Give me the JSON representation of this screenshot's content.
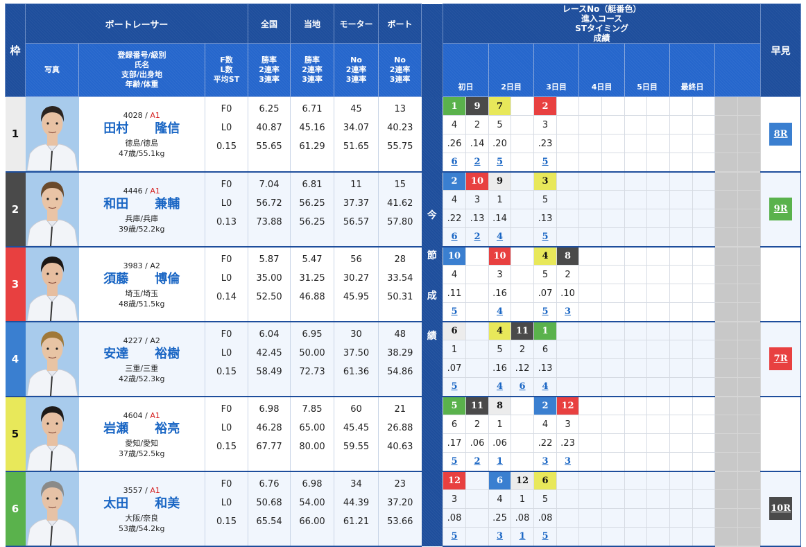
{
  "header": {
    "waku": "枠",
    "racer_group": "ボートレーサー",
    "photo": "写真",
    "info_lines": [
      "登録番号/級別",
      "氏名",
      "支部/出身地",
      "年齢/体重"
    ],
    "fl_lines": [
      "F数",
      "L数",
      "平均ST"
    ],
    "zenkoku": "全国",
    "zenkoku_lines": [
      "勝率",
      "2連率",
      "3連率"
    ],
    "touchi": "当地",
    "touchi_lines": [
      "勝率",
      "2連率",
      "3連率"
    ],
    "motor": "モーター",
    "motor_lines": [
      "No",
      "2連率",
      "3連率"
    ],
    "boat": "ボート",
    "boat_lines": [
      "No",
      "2連率",
      "3連率"
    ],
    "series_lines": [
      "レースNo（艇番色）",
      "進入コース",
      "STタイミング",
      "成績"
    ],
    "days": [
      "初日",
      "2日目",
      "3日目",
      "4日目",
      "5日目",
      "最終日",
      ""
    ],
    "hayami": "早見",
    "konsetsu_chars": [
      "今",
      "節",
      "成",
      "績"
    ]
  },
  "colors": {
    "header_dark": "#1e4e9c",
    "header_mid": "#2566cc",
    "boat1": "#ececec",
    "boat2": "#4a4a4a",
    "boat3": "#e84040",
    "boat4": "#3a7fd0",
    "boat5": "#e8e85a",
    "boat6": "#5ab24c",
    "link": "#1a66c4",
    "class_a1": "#d42020"
  },
  "racers": [
    {
      "frame": "1",
      "reg": "4028",
      "sep": " / ",
      "cls": "A1",
      "last": "田村",
      "first": "隆信",
      "branch": "徳島/徳島",
      "age_weight": "47歳/55.1kg",
      "f": "F0",
      "l": "L0",
      "st": "0.15",
      "zenkoku": [
        "6.25",
        "40.87",
        "55.65"
      ],
      "touchi": [
        "6.71",
        "45.16",
        "61.29"
      ],
      "motor": [
        "45",
        "34.07",
        "51.65"
      ],
      "boat": [
        "13",
        "40.23",
        "55.75"
      ],
      "results": [
        {
          "race": "1",
          "color": 6,
          "course": "4",
          "st": ".26",
          "rank": "6"
        },
        {
          "race": "9",
          "color": 2,
          "course": "2",
          "st": ".14",
          "rank": "2"
        },
        {
          "race": "7",
          "color": 5,
          "course": "5",
          "st": ".20",
          "rank": "5"
        },
        null,
        {
          "race": "2",
          "color": 3,
          "course": "3",
          "st": ".23",
          "rank": "5"
        },
        null,
        null,
        null,
        null,
        null,
        null,
        null,
        null,
        null
      ],
      "hayami": "8R",
      "hayami_color": "#3a7fd0"
    },
    {
      "frame": "2",
      "reg": "4446",
      "sep": " / ",
      "cls": "A1",
      "last": "和田",
      "first": "兼輔",
      "branch": "兵庫/兵庫",
      "age_weight": "39歳/52.2kg",
      "f": "F0",
      "l": "L0",
      "st": "0.13",
      "zenkoku": [
        "7.04",
        "56.72",
        "73.88"
      ],
      "touchi": [
        "6.81",
        "56.25",
        "56.25"
      ],
      "motor": [
        "11",
        "37.37",
        "56.57"
      ],
      "boat": [
        "15",
        "41.62",
        "57.80"
      ],
      "results": [
        {
          "race": "2",
          "color": 4,
          "course": "4",
          "st": ".22",
          "rank": "6"
        },
        {
          "race": "10",
          "color": 3,
          "course": "3",
          "st": ".13",
          "rank": "2"
        },
        {
          "race": "9",
          "color": 1,
          "course": "1",
          "st": ".14",
          "rank": "4"
        },
        null,
        {
          "race": "3",
          "color": 5,
          "course": "5",
          "st": ".13",
          "rank": "5"
        },
        null,
        null,
        null,
        null,
        null,
        null,
        null,
        null,
        null
      ],
      "hayami": "9R",
      "hayami_color": "#5ab24c"
    },
    {
      "frame": "3",
      "reg": "3983",
      "sep": " / ",
      "cls": "A2",
      "last": "須藤",
      "first": "博倫",
      "branch": "埼玉/埼玉",
      "age_weight": "48歳/51.5kg",
      "f": "F0",
      "l": "L0",
      "st": "0.14",
      "zenkoku": [
        "5.87",
        "35.00",
        "52.50"
      ],
      "touchi": [
        "5.47",
        "31.25",
        "46.88"
      ],
      "motor": [
        "56",
        "30.27",
        "45.95"
      ],
      "boat": [
        "28",
        "33.54",
        "50.31"
      ],
      "results": [
        {
          "race": "10",
          "color": 4,
          "course": "4",
          "st": ".11",
          "rank": "5"
        },
        null,
        {
          "race": "10",
          "color": 3,
          "course": "3",
          "st": ".16",
          "rank": "4"
        },
        null,
        {
          "race": "4",
          "color": 5,
          "course": "5",
          "st": ".07",
          "rank": "5"
        },
        {
          "race": "8",
          "color": 2,
          "course": "2",
          "st": ".10",
          "rank": "3"
        },
        null,
        null,
        null,
        null,
        null,
        null,
        null,
        null
      ],
      "hayami": "",
      "hayami_color": ""
    },
    {
      "frame": "4",
      "reg": "4227",
      "sep": " / ",
      "cls": "A2",
      "last": "安達",
      "first": "裕樹",
      "branch": "三重/三重",
      "age_weight": "42歳/52.3kg",
      "f": "F0",
      "l": "L0",
      "st": "0.15",
      "zenkoku": [
        "6.04",
        "42.45",
        "58.49"
      ],
      "touchi": [
        "6.95",
        "50.00",
        "72.73"
      ],
      "motor": [
        "30",
        "37.50",
        "61.36"
      ],
      "boat": [
        "48",
        "38.29",
        "54.86"
      ],
      "results": [
        {
          "race": "6",
          "color": 1,
          "course": "1",
          "st": ".07",
          "rank": "5"
        },
        null,
        {
          "race": "4",
          "color": 5,
          "course": "5",
          "st": ".16",
          "rank": "4"
        },
        {
          "race": "11",
          "color": 2,
          "course": "2",
          "st": ".12",
          "rank": "6"
        },
        {
          "race": "1",
          "color": 6,
          "course": "6",
          "st": ".13",
          "rank": "4"
        },
        null,
        null,
        null,
        null,
        null,
        null,
        null,
        null,
        null
      ],
      "hayami": "7R",
      "hayami_color": "#e84040"
    },
    {
      "frame": "5",
      "reg": "4604",
      "sep": " / ",
      "cls": "A1",
      "last": "岩瀬",
      "first": "裕亮",
      "branch": "愛知/愛知",
      "age_weight": "37歳/52.5kg",
      "f": "F0",
      "l": "L0",
      "st": "0.15",
      "zenkoku": [
        "6.98",
        "46.28",
        "67.77"
      ],
      "touchi": [
        "7.85",
        "65.00",
        "80.00"
      ],
      "motor": [
        "60",
        "45.45",
        "59.55"
      ],
      "boat": [
        "21",
        "26.88",
        "40.63"
      ],
      "results": [
        {
          "race": "5",
          "color": 6,
          "course": "6",
          "st": ".17",
          "rank": "5"
        },
        {
          "race": "11",
          "color": 2,
          "course": "2",
          "st": ".06",
          "rank": "2"
        },
        {
          "race": "8",
          "color": 1,
          "course": "1",
          "st": ".06",
          "rank": "1"
        },
        null,
        {
          "race": "2",
          "color": 4,
          "course": "4",
          "st": ".22",
          "rank": "3"
        },
        {
          "race": "12",
          "color": 3,
          "course": "3",
          "st": ".23",
          "rank": "3"
        },
        null,
        null,
        null,
        null,
        null,
        null,
        null,
        null
      ],
      "hayami": "",
      "hayami_color": ""
    },
    {
      "frame": "6",
      "reg": "3557",
      "sep": " / ",
      "cls": "A1",
      "last": "太田",
      "first": "和美",
      "branch": "大阪/奈良",
      "age_weight": "53歳/54.2kg",
      "f": "F0",
      "l": "L0",
      "st": "0.15",
      "zenkoku": [
        "6.76",
        "50.68",
        "65.54"
      ],
      "touchi": [
        "6.98",
        "54.00",
        "66.00"
      ],
      "motor": [
        "34",
        "44.39",
        "61.21"
      ],
      "boat": [
        "23",
        "37.20",
        "53.66"
      ],
      "results": [
        {
          "race": "12",
          "color": 3,
          "course": "3",
          "st": ".08",
          "rank": "5"
        },
        null,
        {
          "race": "6",
          "color": 4,
          "course": "4",
          "st": ".25",
          "rank": "3"
        },
        {
          "race": "12",
          "color": 1,
          "course": "1",
          "st": ".08",
          "rank": "1"
        },
        {
          "race": "6",
          "color": 5,
          "course": "5",
          "st": ".08",
          "rank": "5"
        },
        null,
        null,
        null,
        null,
        null,
        null,
        null,
        null,
        null
      ],
      "hayami": "10R",
      "hayami_color": "#4a4a4a"
    }
  ]
}
